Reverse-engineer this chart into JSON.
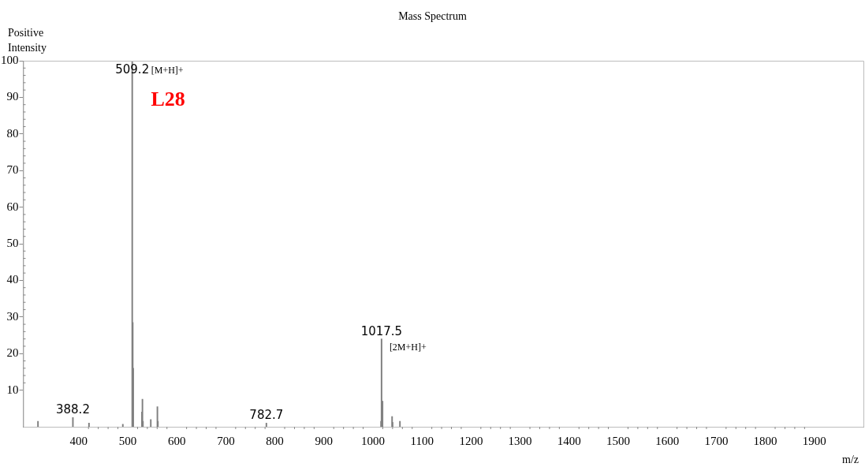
{
  "chart_data": {
    "type": "bar",
    "title": "Mass Spectrum",
    "ylabel": "Positive Intensity",
    "xlabel": "m/z",
    "color": "#808080",
    "x": [
      317,
      388.2,
      421,
      490,
      509.2,
      510.2,
      511.2,
      529,
      530,
      531,
      547,
      560.5,
      561.5,
      782.7,
      1016.5,
      1017.5,
      1018.5,
      1019.5,
      1039,
      1040,
      1055
    ],
    "values": [
      1.5,
      2.5,
      1,
      0.7,
      100,
      28.5,
      16,
      4,
      7.5,
      1.5,
      2,
      5.5,
      1.5,
      1,
      1.5,
      24,
      null,
      7,
      2.8,
      1.2,
      1.5
    ],
    "xlim": [
      287,
      2000
    ],
    "xticks": [
      400,
      500,
      600,
      700,
      800,
      900,
      1000,
      1100,
      1200,
      1300,
      1400,
      1500,
      1600,
      1700,
      1800,
      1900
    ],
    "ylim": [
      0,
      100
    ],
    "yticks": [
      10,
      20,
      30,
      40,
      50,
      60,
      70,
      80,
      90,
      100
    ],
    "grid": false,
    "legend": false,
    "annotations": [
      {
        "text": "388.2",
        "x": 388.2,
        "y": 2.5
      },
      {
        "text": "509.2",
        "x": 509.2,
        "y": 100
      },
      {
        "text": "[M+H]+",
        "x": 509.2,
        "y": 100
      },
      {
        "text": "782.7",
        "x": 782.7,
        "y": 1
      },
      {
        "text": "1017.5",
        "x": 1017.5,
        "y": 24
      },
      {
        "text": "[2M+H]+",
        "x": 1017.5,
        "y": 24
      },
      "L28"
    ]
  }
}
